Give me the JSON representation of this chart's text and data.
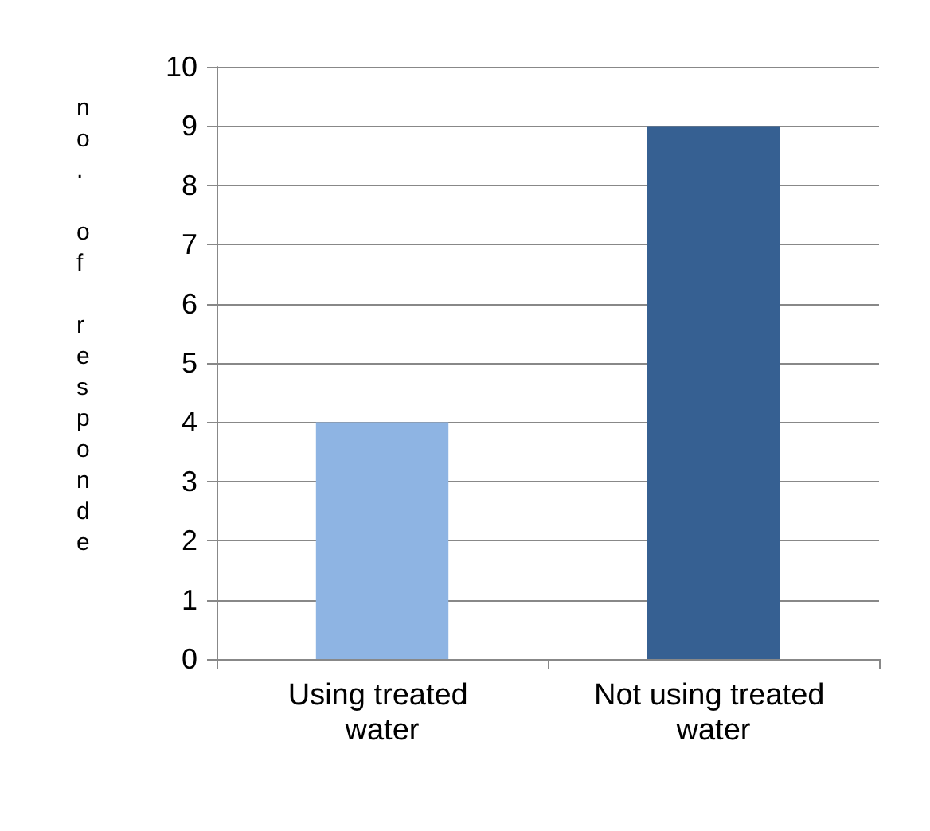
{
  "chart_data": {
    "type": "bar",
    "ylabel": "no. of responde",
    "categories": [
      "Using treated water",
      "Not using treated water"
    ],
    "values": [
      4,
      9
    ],
    "colors": [
      "#8eb4e3",
      "#366092"
    ],
    "ylim": [
      0,
      10
    ],
    "yticks": [
      0,
      1,
      2,
      3,
      4,
      5,
      6,
      7,
      8,
      9,
      10
    ],
    "grid": "y"
  }
}
